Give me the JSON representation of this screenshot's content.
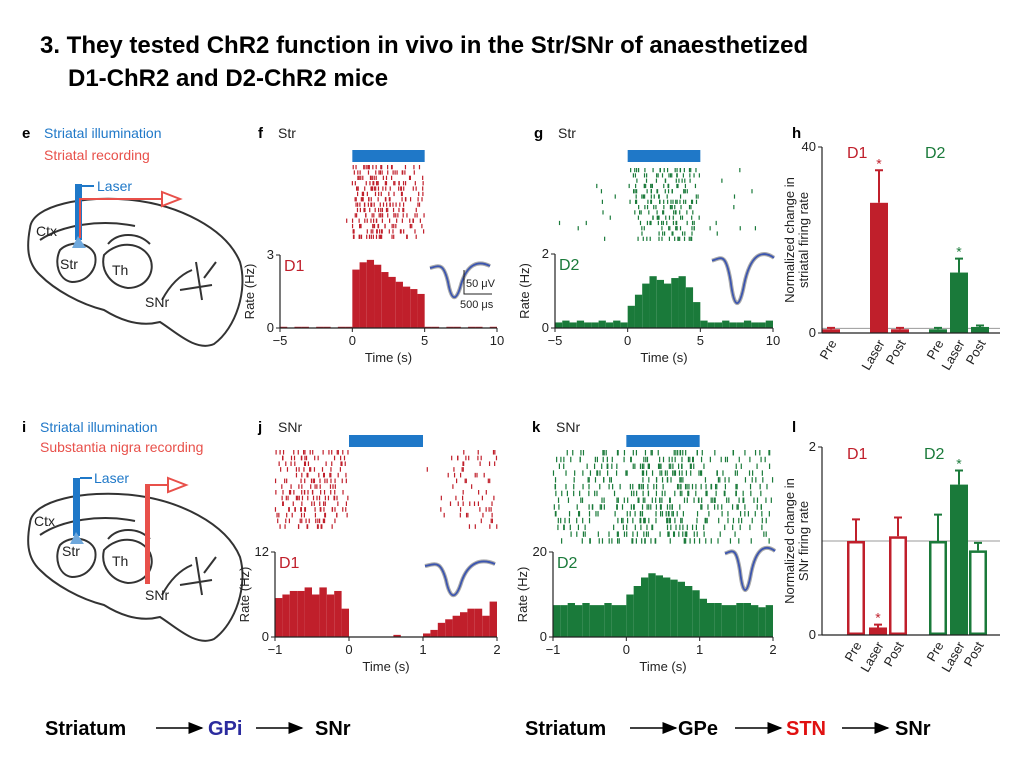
{
  "title": [
    "3. They tested ChR2 function in vivo in the Str/SNr of anaesthetized",
    "D1-ChR2 and D2-ChR2 mice"
  ],
  "diagrams": [
    {
      "panel": "e",
      "illumination": "Striatal illumination",
      "recording": "Striatal recording",
      "laser": "Laser",
      "regions": [
        "Ctx",
        "Str",
        "Th",
        "SNr"
      ]
    },
    {
      "panel": "i",
      "illumination": "Striatal illumination",
      "recording": "Substantia nigra recording",
      "laser": "Laser",
      "regions": [
        "Ctx",
        "Str",
        "Th",
        "SNr"
      ]
    }
  ],
  "chart_data": [
    {
      "type": "histogram",
      "panel": "f",
      "region": "Str",
      "label": "D1",
      "color": "#c01f2b",
      "laser": [
        0,
        5
      ],
      "laser_color": "#1f78c8",
      "xlabel": "Time (s)",
      "ylabel": "Rate (Hz)",
      "inset_labels": [
        "50 μV",
        "500 μs"
      ],
      "bins": [
        -5,
        -4.5,
        -4,
        -3.5,
        -3,
        -2.5,
        -2,
        -1.5,
        -1,
        -0.5,
        0,
        0.5,
        1,
        1.5,
        2,
        2.5,
        3,
        3.5,
        4,
        4.5,
        5,
        5.5,
        6,
        6.5,
        7,
        7.5,
        8,
        8.5,
        9,
        9.5,
        10
      ],
      "values": [
        0.05,
        0,
        0.05,
        0.05,
        0,
        0.05,
        0.05,
        0,
        0.05,
        0.05,
        2.4,
        2.7,
        2.8,
        2.6,
        2.3,
        2.1,
        1.9,
        1.7,
        1.6,
        1.4,
        0.05,
        0.05,
        0,
        0.05,
        0.05,
        0,
        0.05,
        0.05,
        0,
        0.05
      ],
      "xlim": [
        -5,
        10
      ],
      "xticks": [
        {
          "value": -5,
          "label": "−5"
        },
        0,
        5,
        10
      ],
      "ylim": [
        0,
        3
      ],
      "yticks": [
        0,
        3
      ]
    },
    {
      "type": "histogram",
      "panel": "g",
      "region": "Str",
      "label": "D2",
      "color": "#1a7a3a",
      "laser": [
        0,
        5
      ],
      "laser_color": "#1f78c8",
      "xlabel": "Time (s)",
      "ylabel": "Rate (Hz)",
      "bins": [
        -5,
        -4.5,
        -4,
        -3.5,
        -3,
        -2.5,
        -2,
        -1.5,
        -1,
        -0.5,
        0,
        0.5,
        1,
        1.5,
        2,
        2.5,
        3,
        3.5,
        4,
        4.5,
        5,
        5.5,
        6,
        6.5,
        7,
        7.5,
        8,
        8.5,
        9,
        9.5,
        10
      ],
      "values": [
        0.15,
        0.2,
        0.15,
        0.2,
        0.15,
        0.15,
        0.2,
        0.15,
        0.2,
        0.15,
        0.6,
        0.9,
        1.2,
        1.4,
        1.3,
        1.2,
        1.35,
        1.4,
        1.1,
        0.7,
        0.2,
        0.15,
        0.15,
        0.2,
        0.15,
        0.15,
        0.2,
        0.15,
        0.15,
        0.2
      ],
      "xlim": [
        -5,
        10
      ],
      "xticks": [
        {
          "value": -5,
          "label": "−5"
        },
        0,
        5,
        10
      ],
      "ylim": [
        0,
        2
      ],
      "yticks": [
        0,
        2
      ]
    },
    {
      "type": "bar",
      "panel": "h",
      "ylabel": [
        "Normalized change in",
        "striatal firing rate"
      ],
      "categories": [
        "Pre",
        "Laser",
        "Post"
      ],
      "significance_label": "*",
      "reference": 1,
      "series": [
        {
          "name": "D1",
          "color": "#c01f2b",
          "values": [
            0.8,
            28,
            0.8
          ],
          "errors": [
            0.3,
            7,
            0.3
          ],
          "filled": [
            true,
            true,
            true
          ],
          "significant": [
            false,
            true,
            false
          ]
        },
        {
          "name": "D2",
          "color": "#1a7a3a",
          "values": [
            0.8,
            13,
            1.3
          ],
          "errors": [
            0.3,
            3,
            0.3
          ],
          "filled": [
            true,
            true,
            true
          ],
          "significant": [
            false,
            true,
            false
          ]
        }
      ],
      "ylim": [
        0,
        40
      ],
      "yticks": [
        0,
        40
      ]
    },
    {
      "type": "histogram",
      "panel": "j",
      "region": "SNr",
      "label": "D1",
      "color": "#c01f2b",
      "laser": [
        0,
        1
      ],
      "laser_color": "#1f78c8",
      "xlabel": "Time (s)",
      "ylabel": "Rate (Hz)",
      "bins": [
        -1,
        -0.9,
        -0.8,
        -0.7,
        -0.6,
        -0.5,
        -0.4,
        -0.3,
        -0.2,
        -0.1,
        0,
        0.1,
        0.2,
        0.3,
        0.4,
        0.5,
        0.6,
        0.7,
        0.8,
        0.9,
        1,
        1.1,
        1.2,
        1.3,
        1.4,
        1.5,
        1.6,
        1.7,
        1.8,
        1.9,
        2
      ],
      "values": [
        5.5,
        6,
        6.5,
        6.5,
        7,
        6,
        7,
        6,
        6.5,
        4,
        0,
        0,
        0,
        0,
        0,
        0,
        0.3,
        0,
        0,
        0,
        0.5,
        1,
        2,
        2.5,
        3,
        3.5,
        4,
        4,
        3,
        5
      ],
      "xlim": [
        -1,
        2
      ],
      "xticks": [
        {
          "value": -1,
          "label": "−1"
        },
        0,
        1,
        2
      ],
      "ylim": [
        0,
        12
      ],
      "yticks": [
        0,
        12
      ]
    },
    {
      "type": "histogram",
      "panel": "k",
      "region": "SNr",
      "label": "D2",
      "color": "#1a7a3a",
      "laser": [
        0,
        1
      ],
      "laser_color": "#1f78c8",
      "xlabel": "Time (s)",
      "ylabel": "Rate (Hz)",
      "bins": [
        -1,
        -0.9,
        -0.8,
        -0.7,
        -0.6,
        -0.5,
        -0.4,
        -0.3,
        -0.2,
        -0.1,
        0,
        0.1,
        0.2,
        0.3,
        0.4,
        0.5,
        0.6,
        0.7,
        0.8,
        0.9,
        1,
        1.1,
        1.2,
        1.3,
        1.4,
        1.5,
        1.6,
        1.7,
        1.8,
        1.9,
        2
      ],
      "values": [
        7.5,
        7.5,
        8,
        7.5,
        8,
        7.5,
        7.5,
        8,
        7.5,
        7.5,
        10,
        12,
        14,
        15,
        14.5,
        14,
        13.5,
        13,
        12,
        11,
        9,
        8,
        8,
        7.5,
        7.5,
        8,
        8,
        7.5,
        7,
        7.5
      ],
      "xlim": [
        -1,
        2
      ],
      "xticks": [
        {
          "value": -1,
          "label": "−1"
        },
        0,
        1,
        2
      ],
      "ylim": [
        0,
        20
      ],
      "yticks": [
        0,
        20
      ]
    },
    {
      "type": "bar",
      "panel": "l",
      "ylabel": [
        "Normalized change in",
        "SNr firing rate"
      ],
      "categories": [
        "Pre",
        "Laser",
        "Post"
      ],
      "significance_label": "*",
      "reference": 1,
      "series": [
        {
          "name": "D1",
          "color": "#c01f2b",
          "values": [
            1.0,
            0.08,
            1.05
          ],
          "errors": [
            0.23,
            0.03,
            0.2
          ],
          "filled": [
            false,
            true,
            false
          ],
          "significant": [
            false,
            true,
            false
          ]
        },
        {
          "name": "D2",
          "color": "#1a7a3a",
          "values": [
            1.0,
            1.6,
            0.9
          ],
          "errors": [
            0.28,
            0.15,
            0.08
          ],
          "filled": [
            false,
            true,
            false
          ],
          "significant": [
            false,
            true,
            false
          ]
        }
      ],
      "ylim": [
        0,
        2
      ],
      "yticks": [
        0,
        2
      ]
    }
  ],
  "pathways": [
    {
      "nodes": [
        "Striatum",
        "GPi",
        "SNr"
      ],
      "colors": [
        "#000000",
        "#2b2b9e",
        "#000000"
      ]
    },
    {
      "nodes": [
        "Striatum",
        "GPe",
        "STN",
        "SNr"
      ],
      "colors": [
        "#000000",
        "#000000",
        "#e01010",
        "#000000"
      ]
    }
  ]
}
